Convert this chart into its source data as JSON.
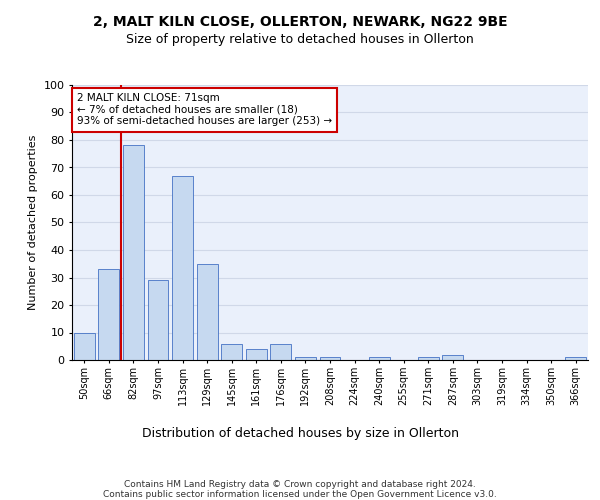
{
  "title1": "2, MALT KILN CLOSE, OLLERTON, NEWARK, NG22 9BE",
  "title2": "Size of property relative to detached houses in Ollerton",
  "xlabel": "Distribution of detached houses by size in Ollerton",
  "ylabel": "Number of detached properties",
  "categories": [
    "50sqm",
    "66sqm",
    "82sqm",
    "97sqm",
    "113sqm",
    "129sqm",
    "145sqm",
    "161sqm",
    "176sqm",
    "192sqm",
    "208sqm",
    "224sqm",
    "240sqm",
    "255sqm",
    "271sqm",
    "287sqm",
    "303sqm",
    "319sqm",
    "334sqm",
    "350sqm",
    "366sqm"
  ],
  "values": [
    10,
    33,
    78,
    29,
    67,
    35,
    6,
    4,
    6,
    1,
    1,
    0,
    1,
    0,
    1,
    2,
    0,
    0,
    0,
    0,
    1
  ],
  "bar_color": "#c6d9f0",
  "bar_edge_color": "#4472c4",
  "grid_color": "#d0d8e8",
  "background_color": "#eaf0fb",
  "vline_color": "#cc0000",
  "annotation_text": "2 MALT KILN CLOSE: 71sqm\n← 7% of detached houses are smaller (18)\n93% of semi-detached houses are larger (253) →",
  "annotation_box_color": "#ffffff",
  "annotation_box_edge": "#cc0000",
  "ylim": [
    0,
    100
  ],
  "yticks": [
    0,
    10,
    20,
    30,
    40,
    50,
    60,
    70,
    80,
    90,
    100
  ],
  "footer": "Contains HM Land Registry data © Crown copyright and database right 2024.\nContains public sector information licensed under the Open Government Licence v3.0."
}
